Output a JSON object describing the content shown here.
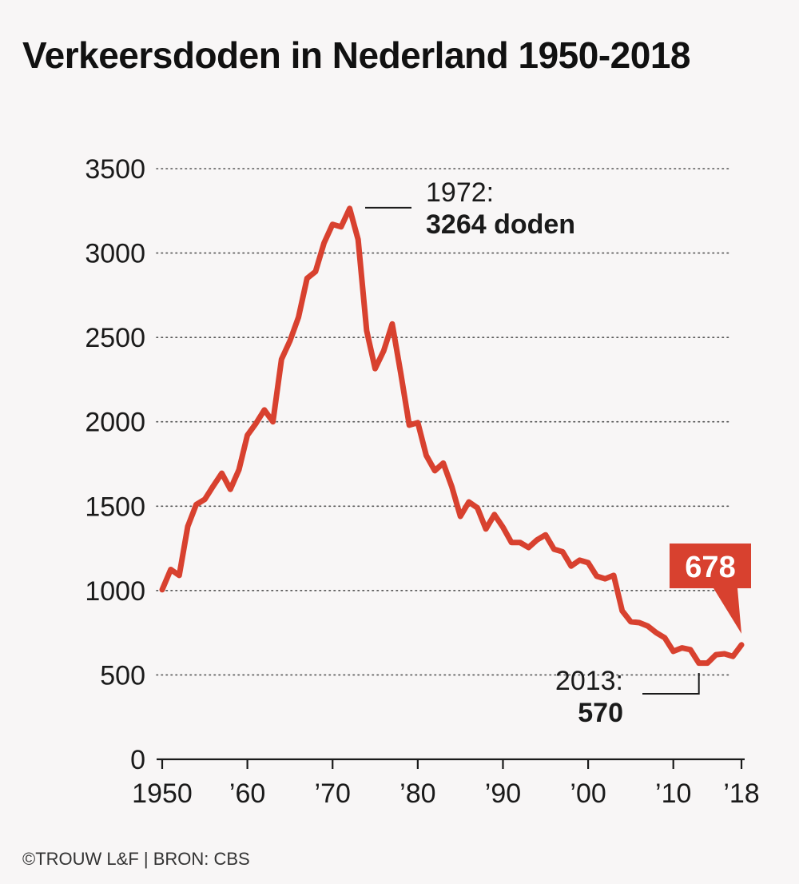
{
  "title": "Verkeersdoden in Nederland 1950-2018",
  "footer": "©TROUW L&F | BRON: CBS",
  "colors": {
    "line": "#d8412f",
    "callout": "#d8412f",
    "grid": "#555555",
    "text": "#1a1a1a",
    "background": "#f8f6f6"
  },
  "chart_data": {
    "type": "line",
    "title": "Verkeersdoden in Nederland 1950-2018",
    "xlabel": "",
    "ylabel": "",
    "xlim": [
      1950,
      2018
    ],
    "ylim": [
      0,
      3500
    ],
    "y_ticks": [
      0,
      500,
      1000,
      1500,
      2000,
      2500,
      3000,
      3500
    ],
    "y_tick_labels": [
      "0",
      "500",
      "1000",
      "1500",
      "2000",
      "2500",
      "3000",
      "3500"
    ],
    "x_ticks": [
      1950,
      1960,
      1970,
      1980,
      1990,
      2000,
      2010,
      2018
    ],
    "x_tick_labels": [
      "1950",
      "’60",
      "’70",
      "’80",
      "’90",
      "’00",
      "’10",
      "’18"
    ],
    "grid": "horizontal dotted",
    "series": [
      {
        "name": "Verkeersdoden",
        "x": [
          1950,
          1951,
          1952,
          1953,
          1954,
          1955,
          1956,
          1957,
          1958,
          1959,
          1960,
          1961,
          1962,
          1963,
          1964,
          1965,
          1966,
          1967,
          1968,
          1969,
          1970,
          1971,
          1972,
          1973,
          1974,
          1975,
          1976,
          1977,
          1978,
          1979,
          1980,
          1981,
          1982,
          1983,
          1984,
          1985,
          1986,
          1987,
          1988,
          1989,
          1990,
          1991,
          1992,
          1993,
          1994,
          1995,
          1996,
          1997,
          1998,
          1999,
          2000,
          2001,
          2002,
          2003,
          2004,
          2005,
          2006,
          2007,
          2008,
          2009,
          2010,
          2011,
          2012,
          2013,
          2014,
          2015,
          2016,
          2017,
          2018
        ],
        "values": [
          1005,
          1125,
          1090,
          1380,
          1510,
          1540,
          1620,
          1695,
          1600,
          1715,
          1920,
          1990,
          2070,
          2000,
          2370,
          2480,
          2620,
          2850,
          2890,
          3060,
          3170,
          3155,
          3264,
          3080,
          2540,
          2315,
          2420,
          2580,
          2290,
          1980,
          1995,
          1800,
          1710,
          1755,
          1615,
          1440,
          1525,
          1490,
          1365,
          1450,
          1375,
          1285,
          1285,
          1255,
          1300,
          1330,
          1245,
          1230,
          1145,
          1180,
          1165,
          1085,
          1070,
          1090,
          880,
          815,
          810,
          790,
          750,
          720,
          640,
          660,
          650,
          570,
          570,
          620,
          625,
          610,
          678
        ]
      }
    ],
    "annotations": [
      {
        "x": 1972,
        "y": 3264,
        "label": "1972:",
        "value_label": "3264 doden"
      },
      {
        "x": 2013,
        "y": 570,
        "label": "2013:",
        "value_label": "570"
      },
      {
        "x": 2018,
        "y": 678,
        "label": "678",
        "style": "callout"
      }
    ]
  }
}
